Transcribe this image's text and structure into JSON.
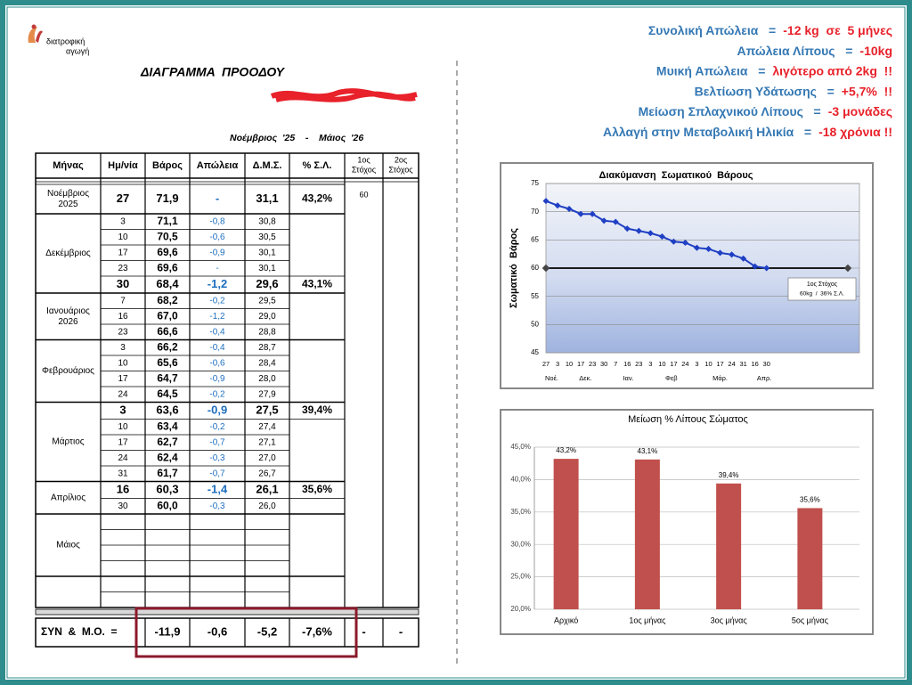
{
  "logo": [
    "διατροφική",
    "αγωγή"
  ],
  "title": "ΔΙΑΓΡΑΜΜΑ  ΠΡΟΟΔΟΥ",
  "period": "Νοέμβριος  '25    -    Μάιος  '26",
  "summary": [
    {
      "label": "Συνολική Απώλεια   =",
      "value": "-12 kg  σε  5 μήνες"
    },
    {
      "label": "Απώλεια Λίπους   =",
      "value": "-10kg"
    },
    {
      "label": "Μυική Απώλεια   =",
      "value": "λιγότερο από 2kg  !!"
    },
    {
      "label": "Βελτίωση Υδάτωσης   =",
      "value": "+5,7%  !!"
    },
    {
      "label": "Μείωση Σπλαχνικού Λίπους   =",
      "value": "-3 μονάδες"
    },
    {
      "label": "Αλλαγή στην Μεταβολική Ηλικία   =",
      "value": "-18 χρόνια !!"
    }
  ],
  "table": {
    "columns": [
      "Μήνας",
      "Ημ/νία",
      "Βάρος",
      "Απώλεια",
      "Δ.Μ.Σ.",
      "% Σ.Λ.",
      [
        "1ος",
        "Στόχος"
      ],
      [
        "2ος",
        "Στόχος"
      ]
    ],
    "groups": [
      {
        "month": [
          "Νοέμβριος",
          "2025"
        ],
        "rows": [
          {
            "d": "27",
            "w": "71,9",
            "l": "-",
            "b": "31,1",
            "p": "43,2%",
            "g1": "60"
          }
        ]
      },
      {
        "month": [
          "Δεκέμβριος"
        ],
        "rows": [
          {
            "d": "3",
            "w": "71,1",
            "l": "-0,8",
            "b": "30,8"
          },
          {
            "d": "10",
            "w": "70,5",
            "l": "-0,6",
            "b": "30,5"
          },
          {
            "d": "17",
            "w": "69,6",
            "l": "-0,9",
            "b": "30,1"
          },
          {
            "d": "23",
            "w": "69,6",
            "l": "-",
            "b": "30,1"
          },
          {
            "d": "30",
            "w": "68,4",
            "l": "-1,2",
            "b": "29,6",
            "p": "43,1%"
          }
        ]
      },
      {
        "month": [
          "Ιανουάριος",
          "2026"
        ],
        "rows": [
          {
            "d": "7",
            "w": "68,2",
            "l": "-0,2",
            "b": "29,5"
          },
          {
            "d": "16",
            "w": "67,0",
            "l": "-1,2",
            "b": "29,0"
          },
          {
            "d": "23",
            "w": "66,6",
            "l": "-0,4",
            "b": "28,8"
          }
        ]
      },
      {
        "month": [
          "Φεβρουάριος"
        ],
        "rows": [
          {
            "d": "3",
            "w": "66,2",
            "l": "-0,4",
            "b": "28,7"
          },
          {
            "d": "10",
            "w": "65,6",
            "l": "-0,6",
            "b": "28,4"
          },
          {
            "d": "17",
            "w": "64,7",
            "l": "-0,9",
            "b": "28,0"
          },
          {
            "d": "24",
            "w": "64,5",
            "l": "-0,2",
            "b": "27,9"
          }
        ]
      },
      {
        "month": [
          "Μάρτιος"
        ],
        "rows": [
          {
            "d": "3",
            "w": "63,6",
            "l": "-0,9",
            "b": "27,5",
            "p": "39,4%"
          },
          {
            "d": "10",
            "w": "63,4",
            "l": "-0,2",
            "b": "27,4"
          },
          {
            "d": "17",
            "w": "62,7",
            "l": "-0,7",
            "b": "27,1"
          },
          {
            "d": "24",
            "w": "62,4",
            "l": "-0,3",
            "b": "27,0"
          },
          {
            "d": "31",
            "w": "61,7",
            "l": "-0,7",
            "b": "26,7"
          }
        ]
      },
      {
        "month": [
          "Απρίλιος"
        ],
        "rows": [
          {
            "d": "16",
            "w": "60,3",
            "l": "-1,4",
            "b": "26,1",
            "p": "35,6%"
          },
          {
            "d": "30",
            "w": "60,0",
            "l": "-0,3",
            "b": "26,0"
          }
        ]
      },
      {
        "month": [
          "Μάιος"
        ],
        "rows": []
      }
    ],
    "totals": {
      "label": "ΣΥΝ  &  Μ.Ο.  =",
      "cells": [
        "-11,9",
        "-0,6",
        "-5,2",
        "-7,6%",
        "-",
        "-"
      ]
    }
  },
  "chart_data": [
    {
      "type": "line",
      "title": "Διακύμανση  Σωματικού  Βάρους",
      "y_label": "Σωματικό  Βάρος",
      "categories": [
        "27",
        "3",
        "10",
        "17",
        "23",
        "30",
        "7",
        "16",
        "23",
        "3",
        "10",
        "17",
        "24",
        "3",
        "10",
        "17",
        "24",
        "31",
        "16",
        "30",
        null,
        null,
        null,
        null,
        null,
        null,
        null
      ],
      "group_labels": [
        "Νοέ.",
        "Δεκ.",
        "Ιαν.",
        "Φεβ",
        "Μάρ.",
        "Απρ."
      ],
      "series": [
        {
          "color": "#1f3fc4",
          "values": [
            71.9,
            71.1,
            70.5,
            69.6,
            69.6,
            68.4,
            68.2,
            67.0,
            66.6,
            66.2,
            65.6,
            64.7,
            64.5,
            63.6,
            63.4,
            62.7,
            62.4,
            61.7,
            60.3,
            60.0,
            null,
            null,
            null,
            null,
            null,
            null,
            null
          ]
        },
        {
          "name": "1ος Στόχος",
          "color": "#000000",
          "values": [
            60,
            60,
            60,
            60,
            60,
            60,
            60,
            60,
            60,
            60,
            60,
            60,
            60,
            60,
            60,
            60,
            60,
            60,
            60,
            60,
            60,
            60,
            60,
            60,
            60,
            60,
            60
          ]
        }
      ],
      "annotation": "60kg  /  36% Σ.Λ.",
      "ylim": [
        45,
        75
      ],
      "yticks": [
        45,
        50,
        55,
        60,
        65,
        70,
        75
      ],
      "grid": true
    },
    {
      "type": "bar",
      "title": "Μείωση % Λίπους Σώματος",
      "categories": [
        "Αρχικό",
        "1ος μήνας",
        "3ος μήνας",
        "5ος μήνας"
      ],
      "values": [
        43.2,
        43.1,
        39.4,
        35.6
      ],
      "value_labels": [
        "43,2%",
        "43,1%",
        "39,4%",
        "35,6%"
      ],
      "color": "#c0504d",
      "ylim": [
        20,
        45
      ],
      "yticks": [
        {
          "value": 20,
          "label": "20,0%"
        },
        {
          "value": 25,
          "label": "25,0%"
        },
        {
          "value": 30,
          "label": "30,0%"
        },
        {
          "value": 35,
          "label": "35,0%"
        },
        {
          "value": 40,
          "label": "40,0%"
        },
        {
          "value": 45,
          "label": "45,0%"
        }
      ],
      "grid": true
    }
  ]
}
